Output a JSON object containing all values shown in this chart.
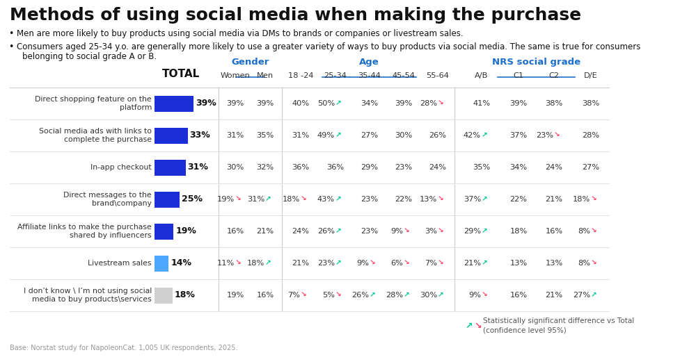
{
  "title": "Methods of using social media when making the purchase",
  "bullet1": "Men are more likely to buy products using social media via DMs to brands or companies or livestream sales.",
  "bullet2a": "Consumers aged 25-34 y.o. are generally more likely to use a greater variety of ways to buy products via social media. The same is true for consumers",
  "bullet2b": "belonging to social grade A or B.",
  "row_labels": [
    "Direct shopping feature on the\nplatform",
    "Social media ads with links to\ncomplete the purchase",
    "In-app checkout",
    "Direct messages to the\nbrand\\company",
    "Affiliate links to make the purchase\nshared by influencers",
    "Livestream sales",
    "I don’t know \\ I’m not using social\nmedia to buy products\\services"
  ],
  "total_values": [
    39,
    33,
    31,
    25,
    19,
    14,
    18
  ],
  "bar_colors": [
    "#1c2fd6",
    "#1c2fd6",
    "#1c2fd6",
    "#1c2fd6",
    "#1c2fd6",
    "#4da6ff",
    "#d0d0d0"
  ],
  "col_headers": [
    "Women",
    "Men",
    "18 -24",
    "25-34",
    "35-44",
    "45-54",
    "55-64",
    "A/B",
    "C1",
    "C2",
    "D/E"
  ],
  "cell_data": [
    [
      "39%",
      "39%",
      "40%",
      "50%↗",
      "34%",
      "39%",
      "28%↘",
      "41%",
      "39%",
      "38%",
      "38%"
    ],
    [
      "31%",
      "35%",
      "31%",
      "49%↗",
      "27%",
      "30%",
      "26%",
      "42%↗",
      "37%",
      "23%↘",
      "28%"
    ],
    [
      "30%",
      "32%",
      "36%",
      "36%",
      "29%",
      "23%",
      "24%",
      "35%",
      "34%",
      "24%",
      "27%"
    ],
    [
      "19%↘",
      "31%↗",
      "18%↘",
      "43%↗",
      "23%",
      "22%",
      "13%↘",
      "37%↗",
      "22%",
      "21%",
      "18%↘"
    ],
    [
      "16%",
      "21%",
      "24%",
      "26%↗",
      "23%",
      "9%↘",
      "3%↘",
      "29%↗",
      "18%",
      "16%",
      "8%↘"
    ],
    [
      "11%↘",
      "18%↗",
      "21%",
      "23%↗",
      "9%↘",
      "6%↘",
      "7%↘",
      "21%↗",
      "13%",
      "13%",
      "8%↘"
    ],
    [
      "19%",
      "16%",
      "7%↘",
      "5%↘",
      "26%↗",
      "28%↗",
      "30%↗",
      "9%↘",
      "16%",
      "21%",
      "27%↗"
    ]
  ],
  "up_color": "#00c896",
  "dn_color": "#ff4466",
  "hdr_color": "#1a6fcc",
  "bg_color": "#ffffff",
  "text_color": "#222222",
  "footnote": "Base: Norstat study for NapoleonCat. 1,005 UK respondents, 2025.",
  "legend_text": "Statistically significant difference vs Total\n(confidence level 95%)"
}
